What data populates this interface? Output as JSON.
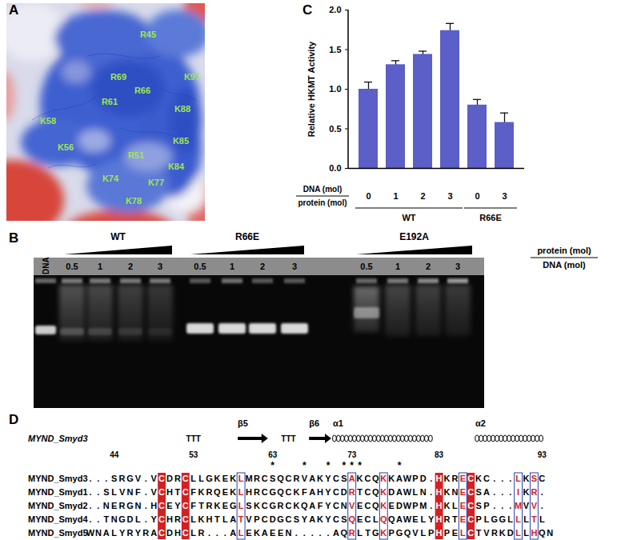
{
  "panels": {
    "A": {
      "label": "A",
      "residues": [
        "R45",
        "R69",
        "R66",
        "R61",
        "K91",
        "K88",
        "K58",
        "K85",
        "K56",
        "R51",
        "K84",
        "K74",
        "K77",
        "K78"
      ]
    },
    "B": {
      "label": "B",
      "marker_lane": "DNA",
      "groups": [
        {
          "name": "WT",
          "ratios": [
            0.5,
            1,
            2,
            3
          ]
        },
        {
          "name": "R66E",
          "ratios": [
            0.5,
            1,
            2,
            3
          ]
        },
        {
          "name": "E192A",
          "ratios": [
            0.5,
            1,
            2,
            3
          ]
        }
      ],
      "ratio_label": {
        "numerator": "protein (mol)",
        "denominator": "DNA (mol)"
      }
    },
    "D": {
      "label": "D",
      "structure_name": "MYND_Smyd3",
      "structure": [
        {
          "kind": "turn",
          "label": "TTT",
          "columns": [
            13,
            15
          ]
        },
        {
          "kind": "strand",
          "label": "β5",
          "columns": [
            20,
            23
          ]
        },
        {
          "kind": "turn",
          "label": "TTT",
          "columns": [
            25,
            27
          ]
        },
        {
          "kind": "strand",
          "label": "β6",
          "columns": [
            29,
            31
          ]
        },
        {
          "kind": "helix",
          "label": "α1",
          "columns": [
            32,
            44
          ]
        },
        {
          "kind": "helix",
          "label": "α2",
          "columns": [
            50,
            58
          ]
        }
      ],
      "numbering": [
        44,
        53,
        63,
        73,
        83,
        93
      ],
      "asterisk": "*",
      "asterisk_columns": [
        24,
        28,
        31,
        33,
        34,
        35,
        40
      ],
      "identical_columns": [
        10,
        13,
        45,
        49
      ],
      "similar_columns": [
        20,
        34,
        38,
        48,
        55,
        57
      ],
      "sequences": [
        {
          "name": "MYND_Smyd3",
          "sequence": "...SRGV.VCDRCLLGKEKLMRCSQCRVAKYCSAKCQKKAWPD.HKRECKC...LKSC"
        },
        {
          "name": "MYND_Smyd1",
          "sequence": "..SLVNF.VCHTCFKRQEKLHRCGQCKFAHYCDRTCQKDAWLN.HKNECSA...IKR."
        },
        {
          "name": "MYND_Smyd2",
          "sequence": "..NERGN.HCEYCFTRKEGLSKCGRCKQAFYCNVECQKEDWPM.HKLECSP...MVV."
        },
        {
          "name": "MYND_Smyd4",
          "sequence": "..TNGDL.YCHRCLKHTLATVPCDGCSYAKYCSQECLQQAWELYHRTECPLGGLLLTL"
        },
        {
          "name": "MYND_Smyd5",
          "sequence": "WNALYRYRACDHCLR...ALEKAEEN.....AQRLTGKPGQVLPHPELCTVRKDLLHQN"
        }
      ]
    }
  },
  "chart_data": {
    "type": "bar",
    "title": "C",
    "categories": [
      "0",
      "1",
      "2",
      "3",
      "0",
      "3"
    ],
    "groups": [
      "WT",
      "WT",
      "WT",
      "WT",
      "R66E",
      "R66E"
    ],
    "values": [
      1.0,
      1.31,
      1.44,
      1.74,
      0.8,
      0.58
    ],
    "errors": [
      0.09,
      0.05,
      0.04,
      0.09,
      0.07,
      0.12
    ],
    "color": "#5b5fc7",
    "y_label": "Relative HKMT Activity",
    "x_label": {
      "numerator": "DNA (mol)",
      "denominator": "protein (mol)"
    },
    "ylim": [
      0,
      2
    ],
    "yticks": [
      {
        "value": 0,
        "label": "0.0"
      },
      {
        "value": 0.5,
        "label": "0.5"
      },
      {
        "value": 1,
        "label": "1.0"
      },
      {
        "value": 1.5,
        "label": "1.5"
      },
      {
        "value": 2,
        "label": "2.0"
      }
    ]
  }
}
